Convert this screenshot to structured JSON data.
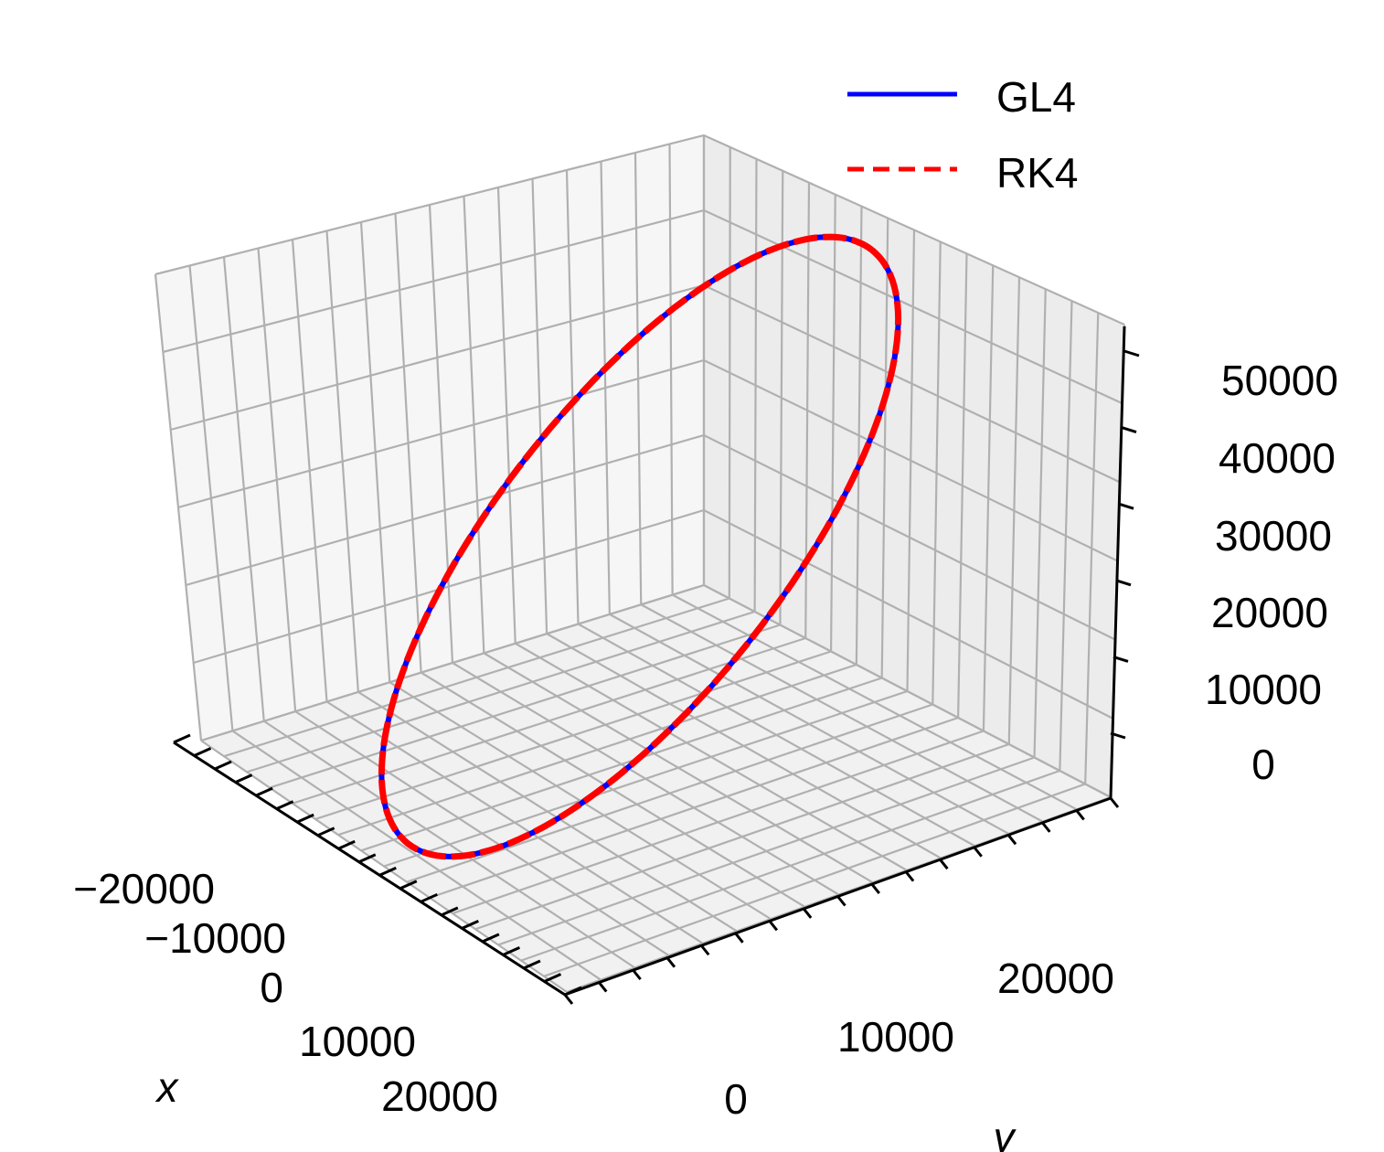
{
  "chart_data": {
    "type": "line3d",
    "title": "",
    "xlabel": "x",
    "ylabel": "y",
    "zlabel": "",
    "xlim": [
      -30000,
      30000
    ],
    "ylim": [
      -5000,
      27000
    ],
    "zlim": [
      -5000,
      55000
    ],
    "x_ticks": [
      "−20000",
      "−10000",
      "0",
      "10000",
      "20000"
    ],
    "y_ticks": [
      "0",
      "10000",
      "20000"
    ],
    "z_ticks": [
      "0",
      "10000",
      "20000",
      "30000",
      "40000",
      "50000"
    ],
    "grid": true,
    "legend_position": "top-right",
    "series": [
      {
        "name": "GL4",
        "color": "#0000ff",
        "style": "solid",
        "points": [
          {
            "x": 28000,
            "y": 0,
            "z": 0
          },
          {
            "x": 24000,
            "y": 10000,
            "z": 17000
          },
          {
            "x": 14000,
            "y": 17000,
            "z": 34000
          },
          {
            "x": 0,
            "y": 20000,
            "z": 50000
          },
          {
            "x": -14000,
            "y": 17000,
            "z": 52000
          },
          {
            "x": -24000,
            "y": 10000,
            "z": 42000
          },
          {
            "x": -28000,
            "y": 0,
            "z": 22000
          },
          {
            "x": -24000,
            "y": -10000,
            "z": 8000
          },
          {
            "x": -14000,
            "y": -17000,
            "z": 1000
          },
          {
            "x": 0,
            "y": -20000,
            "z": 0
          },
          {
            "x": 14000,
            "y": -17000,
            "z": 0
          },
          {
            "x": 24000,
            "y": -10000,
            "z": 0
          }
        ]
      },
      {
        "name": "RK4",
        "color": "#ff0000",
        "style": "dashed",
        "points": [
          {
            "x": 28000,
            "y": 0,
            "z": 0
          },
          {
            "x": 24000,
            "y": 10000,
            "z": 17000
          },
          {
            "x": 14000,
            "y": 17000,
            "z": 34000
          },
          {
            "x": 0,
            "y": 20000,
            "z": 50000
          },
          {
            "x": -14000,
            "y": 17000,
            "z": 52000
          },
          {
            "x": -24000,
            "y": 10000,
            "z": 42000
          },
          {
            "x": -28000,
            "y": 0,
            "z": 22000
          },
          {
            "x": -24000,
            "y": -10000,
            "z": 8000
          },
          {
            "x": -14000,
            "y": -17000,
            "z": 1000
          },
          {
            "x": 0,
            "y": -20000,
            "z": 0
          },
          {
            "x": 14000,
            "y": -17000,
            "z": 0
          },
          {
            "x": 24000,
            "y": -10000,
            "z": 0
          }
        ]
      }
    ]
  }
}
